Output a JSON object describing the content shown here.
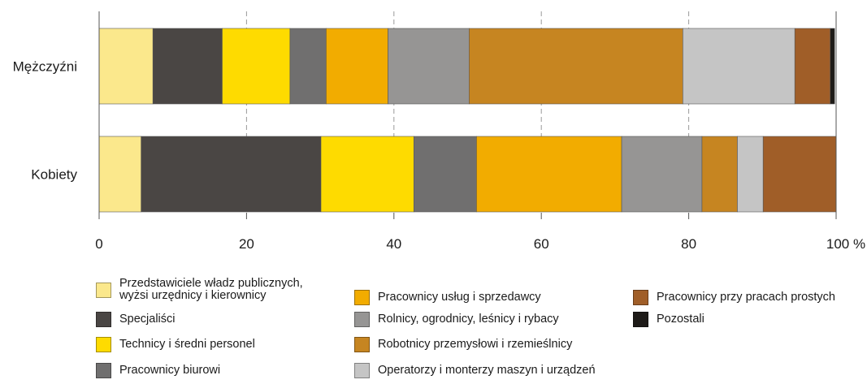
{
  "chart_data": {
    "type": "bar",
    "orientation": "horizontal",
    "stacked": true,
    "categories": [
      "Mężczyźni",
      "Kobiety"
    ],
    "xlim": [
      0,
      100
    ],
    "x_ticks": [
      "0",
      "20",
      "40",
      "60",
      "80",
      "100 %"
    ],
    "grid": "vertical dashed",
    "legend_position": "bottom",
    "series": [
      {
        "name": "Przedstawiciele władz publicznych,\nwyżsi urzędnicy i kierownicy",
        "color": "#fbe88c",
        "values": [
          7.3,
          5.7
        ]
      },
      {
        "name": "Specjaliści",
        "color": "#4a4644",
        "values": [
          9.4,
          24.4
        ]
      },
      {
        "name": "Technicy i średni personel",
        "color": "#fedb00",
        "values": [
          9.2,
          12.6
        ]
      },
      {
        "name": "Pracownicy biurowi",
        "color": "#706f6f",
        "values": [
          4.9,
          8.5
        ]
      },
      {
        "name": "Pracownicy usług i sprzedawcy",
        "color": "#f2ac00",
        "values": [
          8.4,
          19.7
        ]
      },
      {
        "name": "Rolnicy, ogrodnicy, leśnicy i rybacy",
        "color": "#969594",
        "values": [
          11.0,
          10.9
        ]
      },
      {
        "name": "Robotnicy przemysłowi i rzemieślnicy",
        "color": "#c68521",
        "values": [
          29.0,
          4.8
        ]
      },
      {
        "name": "Operatorzy i monterzy maszyn i urządzeń",
        "color": "#c5c5c5",
        "values": [
          15.2,
          3.5
        ]
      },
      {
        "name": "Pracownicy przy pracach prostych",
        "color": "#a05e28",
        "values": [
          4.8,
          9.9
        ]
      },
      {
        "name": "Pozostali",
        "color": "#1e1b18",
        "values": [
          0.6,
          0.0
        ]
      }
    ]
  }
}
